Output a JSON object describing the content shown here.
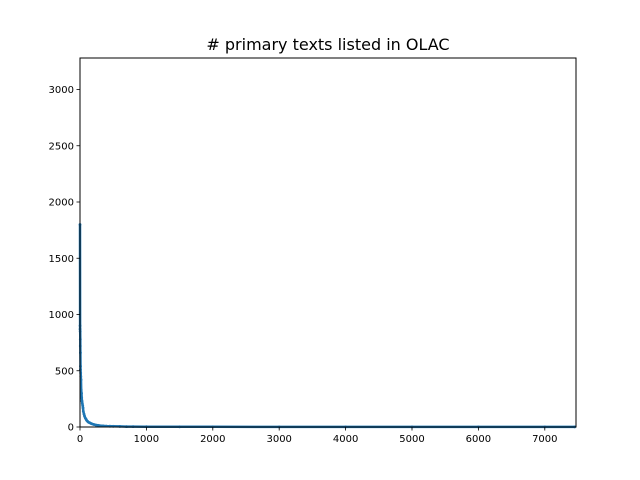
{
  "chart_data": {
    "type": "scatter",
    "title": "# primary texts listed in OLAC",
    "xlabel": "",
    "ylabel": "",
    "xlim": [
      0,
      7470
    ],
    "ylim": [
      0,
      3280
    ],
    "xticks": [
      0,
      1000,
      2000,
      3000,
      4000,
      5000,
      6000,
      7000
    ],
    "yticks": [
      0,
      500,
      1000,
      1500,
      2000,
      2500,
      3000
    ],
    "grid": false,
    "legend": "none",
    "series": [
      {
        "color": "#1f77b4",
        "x": [
          0,
          1,
          2,
          3,
          4,
          5,
          6,
          7,
          8,
          10,
          12,
          15,
          18,
          22,
          26,
          30,
          35,
          40,
          45,
          50,
          60,
          70,
          80,
          90,
          100,
          115,
          130,
          150,
          170,
          190,
          210,
          240,
          270,
          300,
          350,
          400,
          450,
          500,
          600,
          700,
          800,
          1000,
          1500,
          2000,
          3000,
          4000,
          5000,
          6000,
          7000,
          7450
        ],
        "y": [
          1800,
          900,
          870,
          850,
          780,
          720,
          660,
          540,
          510,
          480,
          450,
          420,
          330,
          300,
          260,
          230,
          210,
          190,
          170,
          140,
          115,
          95,
          80,
          70,
          60,
          50,
          42,
          36,
          30,
          26,
          22,
          18,
          15,
          12,
          10,
          8,
          7,
          6,
          5,
          4,
          4,
          3,
          2,
          2,
          1,
          1,
          1,
          1,
          1,
          1
        ]
      }
    ]
  }
}
